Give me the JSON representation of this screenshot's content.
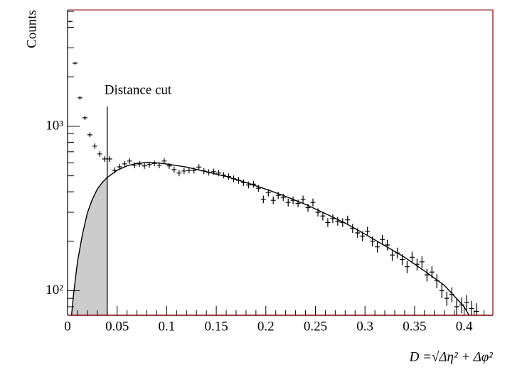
{
  "chart_data": {
    "type": "histogram",
    "y_label": "Counts",
    "x_label": "D =√Δη² + Δφ²",
    "log_y": true,
    "color": "#000000",
    "fit_color": "#000000",
    "shade_color": "#cccccc",
    "frame_color": "#800000",
    "xlim": [
      0,
      0.429
    ],
    "ylim": [
      71,
      5100
    ],
    "xticks": [
      0,
      0.05,
      0.1,
      0.15,
      0.2,
      0.25,
      0.3,
      0.35,
      0.4
    ],
    "xminor": [
      0.01,
      0.02,
      0.03,
      0.04,
      0.06,
      0.07,
      0.08,
      0.09,
      0.11,
      0.12,
      0.13,
      0.14,
      0.16,
      0.17,
      0.18,
      0.19,
      0.21,
      0.22,
      0.23,
      0.24,
      0.26,
      0.27,
      0.28,
      0.29,
      0.31,
      0.32,
      0.33,
      0.34,
      0.36,
      0.37,
      0.38,
      0.39,
      0.41,
      0.42
    ],
    "yticks": [
      {
        "value": 100,
        "label": "10²"
      },
      {
        "value": 1000,
        "label": "10³"
      }
    ],
    "yminor": [
      80,
      90,
      200,
      300,
      400,
      500,
      600,
      700,
      800,
      900,
      2000,
      3000,
      4000,
      5000
    ],
    "x": [
      0.0025,
      0.0075,
      0.0125,
      0.0175,
      0.0225,
      0.0275,
      0.0325,
      0.0375,
      0.0425,
      0.0475,
      0.0525,
      0.0575,
      0.0625,
      0.0675,
      0.0725,
      0.0775,
      0.0825,
      0.0875,
      0.0925,
      0.0975,
      0.1025,
      0.1075,
      0.1125,
      0.1175,
      0.1225,
      0.1275,
      0.1325,
      0.1375,
      0.1425,
      0.1475,
      0.1525,
      0.1575,
      0.1625,
      0.1675,
      0.1725,
      0.1775,
      0.1825,
      0.1875,
      0.1925,
      0.1975,
      0.2025,
      0.2075,
      0.2125,
      0.2175,
      0.2225,
      0.2275,
      0.2325,
      0.2375,
      0.2425,
      0.2475,
      0.2525,
      0.2575,
      0.2625,
      0.2675,
      0.2725,
      0.2775,
      0.2825,
      0.2875,
      0.2925,
      0.2975,
      0.3025,
      0.3075,
      0.3125,
      0.3175,
      0.3225,
      0.3275,
      0.3325,
      0.3375,
      0.3425,
      0.3475,
      0.3525,
      0.3575,
      0.3625,
      0.3675,
      0.3725,
      0.3775,
      0.3825,
      0.3875,
      0.3925,
      0.3975,
      0.4025,
      0.4075,
      0.4125
    ],
    "values": [
      4340,
      2420,
      1490,
      1127,
      888,
      758,
      679,
      633,
      633,
      540,
      567,
      591,
      615,
      580,
      590,
      575,
      585,
      595,
      580,
      615,
      575,
      545,
      520,
      535,
      540,
      540,
      565,
      535,
      525,
      530,
      520,
      505,
      495,
      480,
      470,
      455,
      440,
      445,
      420,
      360,
      395,
      355,
      380,
      370,
      345,
      355,
      340,
      360,
      320,
      345,
      300,
      285,
      260,
      275,
      265,
      260,
      270,
      240,
      225,
      215,
      230,
      200,
      185,
      205,
      190,
      165,
      170,
      155,
      140,
      160,
      145,
      150,
      125,
      130,
      115,
      100,
      90,
      95,
      80,
      82,
      85,
      78,
      75
    ],
    "errors": [
      66,
      49,
      39,
      34,
      30,
      28,
      26,
      25,
      25,
      23,
      24,
      24,
      25,
      24,
      24,
      24,
      24,
      24,
      24,
      25,
      24,
      23,
      23,
      23,
      23,
      23,
      24,
      23,
      23,
      23,
      23,
      22,
      22,
      22,
      22,
      21,
      21,
      21,
      20,
      19,
      20,
      19,
      19,
      19,
      19,
      19,
      18,
      19,
      18,
      19,
      17,
      17,
      16,
      17,
      16,
      16,
      16,
      15,
      15,
      15,
      15,
      14,
      14,
      14,
      14,
      13,
      13,
      12,
      12,
      13,
      12,
      12,
      11,
      11,
      11,
      10,
      9,
      10,
      9,
      9,
      9,
      9,
      9
    ],
    "fit": {
      "x": [
        0.004,
        0.006,
        0.01,
        0.015,
        0.02,
        0.025,
        0.03,
        0.035,
        0.04,
        0.05,
        0.06,
        0.07,
        0.08,
        0.09,
        0.1,
        0.12,
        0.14,
        0.16,
        0.18,
        0.2,
        0.22,
        0.24,
        0.26,
        0.28,
        0.3,
        0.32,
        0.34,
        0.36,
        0.38,
        0.4,
        0.405
      ],
      "y": [
        71,
        95,
        150,
        220,
        298,
        360,
        415,
        455,
        489,
        540,
        575,
        595,
        603,
        600,
        590,
        565,
        530,
        495,
        455,
        415,
        375,
        335,
        295,
        258,
        221,
        188,
        160,
        132,
        108,
        80,
        71
      ]
    },
    "cut": {
      "x": 0.04,
      "top": 1320,
      "label": "Distance cut"
    }
  }
}
